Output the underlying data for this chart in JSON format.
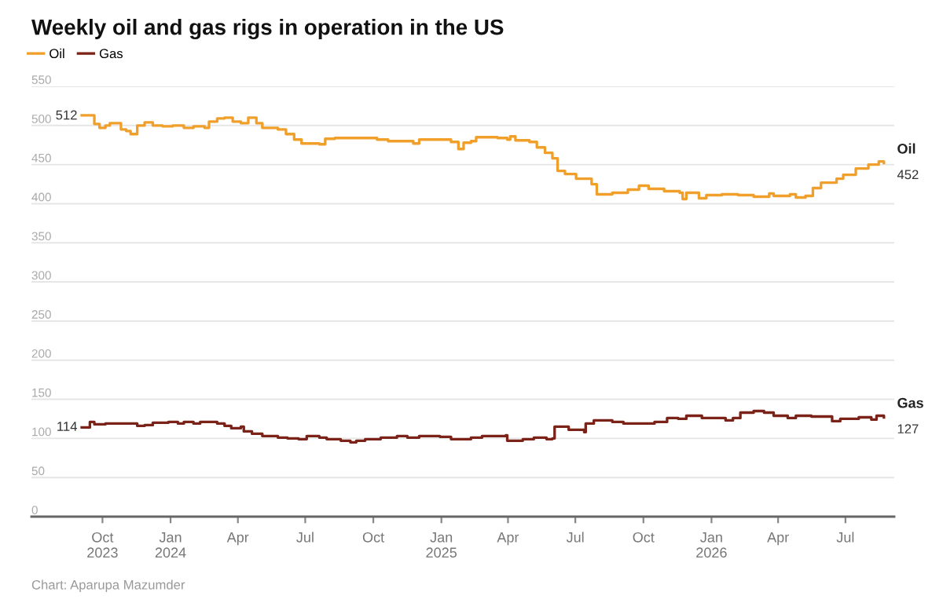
{
  "chart_data": {
    "type": "step",
    "title": "Weekly oil and gas rigs in operation in the US",
    "legend": "top left",
    "grid": "y",
    "line_style": "solid",
    "xlim": [
      "2023-06-27",
      "2026-09-05"
    ],
    "xticks": [
      {
        "value": "2023-10-01",
        "label": "Oct\n2023"
      },
      {
        "value": "2024-01-01",
        "label": "Jan\n2024"
      },
      {
        "value": "2024-04-01",
        "label": "Apr"
      },
      {
        "value": "2024-07-01",
        "label": "Jul"
      },
      {
        "value": "2024-10-01",
        "label": "Oct"
      },
      {
        "value": "2025-01-01",
        "label": "Jan\n2025"
      },
      {
        "value": "2025-04-01",
        "label": "Apr"
      },
      {
        "value": "2025-07-01",
        "label": "Jul"
      },
      {
        "value": "2025-10-01",
        "label": "Oct"
      },
      {
        "value": "2026-01-01",
        "label": "Jan\n2026"
      },
      {
        "value": "2026-04-01",
        "label": "Apr"
      },
      {
        "value": "2026-07-01",
        "label": "Jul"
      }
    ],
    "ylim": [
      0,
      550
    ],
    "yticks": [
      0,
      50,
      100,
      150,
      200,
      250,
      300,
      350,
      400,
      450,
      500,
      550
    ],
    "series": [
      {
        "name": "Oil",
        "color": "#f0a02a",
        "x": [
          "2023-09-03",
          "2023-09-16",
          "2023-09-20",
          "2023-09-27",
          "2023-10-05",
          "2023-10-11",
          "2023-10-26",
          "2023-11-02",
          "2023-11-08",
          "2023-11-17",
          "2023-11-27",
          "2023-12-08",
          "2023-12-21",
          "2024-01-04",
          "2024-01-19",
          "2024-02-01",
          "2024-02-16",
          "2024-02-22",
          "2024-03-04",
          "2024-03-14",
          "2024-03-25",
          "2024-04-05",
          "2024-04-15",
          "2024-04-26",
          "2024-05-04",
          "2024-05-25",
          "2024-06-05",
          "2024-06-16",
          "2024-06-26",
          "2024-07-20",
          "2024-07-28",
          "2024-08-10",
          "2024-09-08",
          "2024-10-06",
          "2024-10-21",
          "2024-11-24",
          "2024-12-02",
          "2024-12-30",
          "2025-01-14",
          "2025-01-24",
          "2025-01-31",
          "2025-02-10",
          "2025-02-17",
          "2025-03-18",
          "2025-03-31",
          "2025-04-04",
          "2025-04-11",
          "2025-04-30",
          "2025-05-10",
          "2025-05-21",
          "2025-05-31",
          "2025-06-07",
          "2025-06-17",
          "2025-07-02",
          "2025-07-23",
          "2025-07-30",
          "2025-08-20",
          "2025-09-10",
          "2025-09-25",
          "2025-10-08",
          "2025-10-29",
          "2025-11-19",
          "2025-11-23",
          "2025-11-28",
          "2025-12-15",
          "2025-12-25",
          "2026-01-15",
          "2026-02-06",
          "2026-02-27",
          "2026-03-20",
          "2026-03-26",
          "2026-04-17",
          "2026-04-25",
          "2026-05-08",
          "2026-05-18",
          "2026-05-29",
          "2026-06-19",
          "2026-06-28",
          "2026-07-15",
          "2026-08-01",
          "2026-08-15",
          "2026-08-22"
        ],
        "values": [
          513,
          513,
          502,
          497,
          500,
          503,
          495,
          493,
          489,
          500,
          504,
          500,
          499,
          500,
          497,
          499,
          497,
          505,
          509,
          510,
          505,
          503,
          510,
          503,
          497,
          495,
          489,
          482,
          477,
          476,
          483,
          484,
          484,
          482,
          480,
          477,
          482,
          482,
          479,
          470,
          478,
          480,
          485,
          484,
          482,
          486,
          481,
          479,
          472,
          465,
          458,
          442,
          438,
          432,
          425,
          412,
          414,
          418,
          423,
          419,
          416,
          414,
          406,
          414,
          407,
          411,
          412,
          411,
          409,
          413,
          410,
          412,
          408,
          410,
          420,
          427,
          432,
          437,
          445,
          450,
          454,
          452
        ]
      },
      {
        "name": "Gas",
        "color": "#7b2318",
        "x": [
          "2023-09-03",
          "2023-09-14",
          "2023-09-20",
          "2023-10-05",
          "2023-10-26",
          "2023-11-12",
          "2023-11-17",
          "2023-11-27",
          "2023-12-08",
          "2023-12-29",
          "2024-01-11",
          "2024-01-19",
          "2024-02-01",
          "2024-02-10",
          "2024-02-22",
          "2024-03-04",
          "2024-03-14",
          "2024-03-23",
          "2024-04-05",
          "2024-04-09",
          "2024-04-20",
          "2024-05-04",
          "2024-05-17",
          "2024-05-25",
          "2024-06-07",
          "2024-06-22",
          "2024-07-03",
          "2024-07-13",
          "2024-07-20",
          "2024-07-30",
          "2024-08-18",
          "2024-08-31",
          "2024-09-08",
          "2024-09-20",
          "2024-10-11",
          "2024-11-02",
          "2024-11-16",
          "2024-12-02",
          "2024-12-30",
          "2025-01-14",
          "2025-01-26",
          "2025-02-10",
          "2025-02-25",
          "2025-03-18",
          "2025-03-29",
          "2025-03-31",
          "2025-04-21",
          "2025-05-06",
          "2025-05-23",
          "2025-05-31",
          "2025-06-03",
          "2025-06-22",
          "2025-07-13",
          "2025-07-15",
          "2025-07-26",
          "2025-08-20",
          "2025-09-04",
          "2025-10-01",
          "2025-10-16",
          "2025-11-02",
          "2025-11-17",
          "2025-11-28",
          "2025-12-19",
          "2026-01-20",
          "2026-01-30",
          "2026-02-09",
          "2026-02-27",
          "2026-03-13",
          "2026-03-26",
          "2026-04-14",
          "2026-04-25",
          "2026-05-16",
          "2026-06-13",
          "2026-06-24",
          "2026-07-19",
          "2026-08-05",
          "2026-08-12",
          "2026-08-22"
        ],
        "values": [
          114,
          121,
          118,
          119,
          119,
          119,
          116,
          117,
          120,
          121,
          119,
          121,
          119,
          121,
          121,
          119,
          116,
          113,
          115,
          109,
          106,
          103,
          103,
          101,
          100,
          99,
          103,
          103,
          101,
          99,
          97,
          95,
          97,
          99,
          101,
          103,
          101,
          103,
          102,
          99,
          99,
          101,
          103,
          103,
          104,
          97,
          99,
          101,
          99,
          100,
          115,
          111,
          108,
          119,
          123,
          121,
          119,
          119,
          121,
          126,
          125,
          129,
          126,
          123,
          126,
          133,
          135,
          133,
          129,
          126,
          129,
          128,
          122,
          125,
          127,
          124,
          129,
          127
        ]
      }
    ],
    "annotations": [
      {
        "text": "512",
        "x": "2023-09-03",
        "y": 512
      },
      {
        "text": "114",
        "x": "2023-09-03",
        "y": 114
      },
      {
        "text": "452",
        "x": "2026-08-22",
        "y": 452
      },
      {
        "text": "127",
        "x": "2026-08-22",
        "y": 127
      },
      "Chart: Aparupa Mazumder"
    ]
  }
}
